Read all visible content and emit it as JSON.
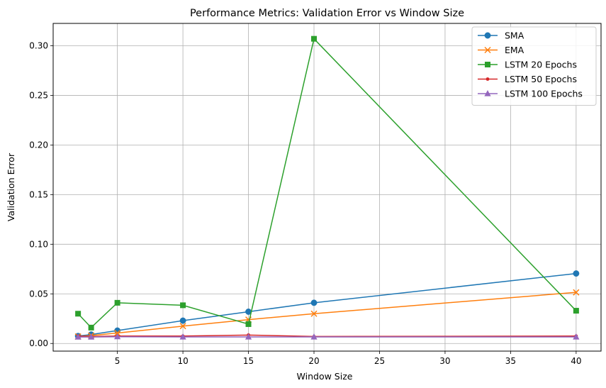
{
  "chart_data": {
    "type": "line",
    "title": "Performance Metrics: Validation Error vs Window Size",
    "xlabel": "Window Size",
    "ylabel": "Validation Error",
    "x": [
      2,
      3,
      5,
      10,
      15,
      20,
      40
    ],
    "xlim": [
      0.1,
      41.9
    ],
    "ylim": [
      -0.0077,
      0.3225
    ],
    "xticks": [
      5,
      10,
      15,
      20,
      25,
      30,
      35,
      40
    ],
    "yticks": [
      0.0,
      0.05,
      0.1,
      0.15,
      0.2,
      0.25,
      0.3
    ],
    "ytick_labels": [
      "0.00",
      "0.05",
      "0.10",
      "0.15",
      "0.20",
      "0.25",
      "0.30"
    ],
    "grid": true,
    "legend_position": "top-right",
    "series": [
      {
        "name": "SMA",
        "color": "#1f77b4",
        "marker": "circle",
        "values": [
          0.0075,
          0.009,
          0.013,
          0.023,
          0.032,
          0.041,
          0.0705
        ]
      },
      {
        "name": "EMA",
        "color": "#ff7f0e",
        "marker": "x",
        "values": [
          0.007,
          0.008,
          0.0105,
          0.0175,
          0.024,
          0.03,
          0.0515
        ]
      },
      {
        "name": "LSTM 20 Epochs",
        "color": "#2ca02c",
        "marker": "square",
        "values": [
          0.03,
          0.016,
          0.041,
          0.0385,
          0.0195,
          0.307,
          0.033
        ]
      },
      {
        "name": "LSTM 50 Epochs",
        "color": "#d62728",
        "marker": "point",
        "values": [
          0.0075,
          0.007,
          0.0075,
          0.0075,
          0.0085,
          0.007,
          0.0075
        ]
      },
      {
        "name": "LSTM 100 Epochs",
        "color": "#9467bd",
        "marker": "triangle",
        "values": [
          0.0065,
          0.0065,
          0.0068,
          0.0066,
          0.0066,
          0.0066,
          0.0066
        ]
      }
    ]
  }
}
